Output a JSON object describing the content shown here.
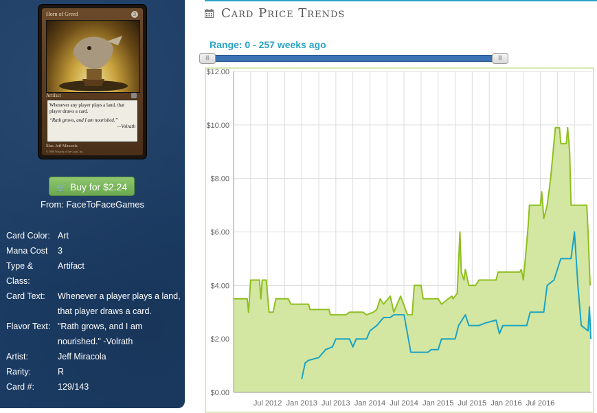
{
  "card": {
    "name": "Horn of Greed",
    "cost": "3",
    "type_line": "Artifact",
    "rules_text": "Whenever any player plays a land, that player draws a card.",
    "flavor_text": "“Rath grows, and I am nourished.”",
    "flavor_sig": "—Volrath",
    "illus": "Illus. Jeff Miracola",
    "copyright": "© 1998 Wizards of the Coast, Inc."
  },
  "buy": {
    "label": "Buy for $2.24",
    "from": "From: FaceToFaceGames",
    "cart_icon": "🛒"
  },
  "info": [
    {
      "label": "Card Color:",
      "value": "Art"
    },
    {
      "label": "Mana Cost",
      "value": "3"
    },
    {
      "label": "Type & Class:",
      "value": "Artifact"
    },
    {
      "label": "Card Text:",
      "value": "Whenever a player plays a land, that player draws a card."
    },
    {
      "label": "Flavor Text:",
      "value": "\"Rath grows, and I am nourished.\" -Volrath"
    },
    {
      "label": "Artist:",
      "value": "Jeff Miracola"
    },
    {
      "label": "Rarity:",
      "value": "R"
    },
    {
      "label": "Card #:",
      "value": "129/143"
    }
  ],
  "header": {
    "title": "Card Price Trends",
    "icon": "calendar-icon"
  },
  "range": {
    "label": "Range: 0 - 257 weeks ago",
    "min": 0,
    "max": 257,
    "handle_glyph": "|||"
  },
  "colors": {
    "accent": "#2aa3c7",
    "green": "#8fbf1f",
    "fill": "#d3e6a2",
    "blue": "#1aa3c4",
    "sidebar": "#1c3d66",
    "button": "#79b85b"
  },
  "chart_data": {
    "type": "line",
    "xlabel": "",
    "ylabel": "",
    "ylim": [
      0,
      12
    ],
    "y_ticks": [
      "$0.00",
      "$2.00",
      "$4.00",
      "$6.00",
      "$8.00",
      "$10.00",
      "$12.00"
    ],
    "x_ticks": [
      "Jul 2012",
      "Jan 2013",
      "Jul 2013",
      "Jan 2014",
      "Jul 2014",
      "Jan 2015",
      "Jul 2015",
      "Jan 2016",
      "Jul 2016"
    ],
    "series": [
      {
        "color": "#8fbf1f",
        "filled": true,
        "points": [
          [
            2012.0,
            3.5
          ],
          [
            2012.2,
            3.5
          ],
          [
            2012.22,
            3.0
          ],
          [
            2012.25,
            4.2
          ],
          [
            2012.38,
            4.2
          ],
          [
            2012.4,
            3.5
          ],
          [
            2012.42,
            4.2
          ],
          [
            2012.48,
            4.2
          ],
          [
            2012.52,
            3.0
          ],
          [
            2012.58,
            3.0
          ],
          [
            2012.62,
            3.5
          ],
          [
            2012.8,
            3.5
          ],
          [
            2012.84,
            3.3
          ],
          [
            2013.1,
            3.3
          ],
          [
            2013.12,
            3.1
          ],
          [
            2013.4,
            3.1
          ],
          [
            2013.42,
            2.9
          ],
          [
            2013.65,
            2.9
          ],
          [
            2013.7,
            3.0
          ],
          [
            2013.9,
            3.0
          ],
          [
            2013.95,
            2.9
          ],
          [
            2014.05,
            3.0
          ],
          [
            2014.1,
            3.1
          ],
          [
            2014.15,
            3.5
          ],
          [
            2014.2,
            3.3
          ],
          [
            2014.3,
            3.6
          ],
          [
            2014.35,
            3.0
          ],
          [
            2014.45,
            3.6
          ],
          [
            2014.55,
            2.9
          ],
          [
            2014.62,
            2.9
          ],
          [
            2014.65,
            4.0
          ],
          [
            2014.75,
            4.0
          ],
          [
            2014.78,
            3.5
          ],
          [
            2015.0,
            3.5
          ],
          [
            2015.05,
            3.3
          ],
          [
            2015.2,
            3.6
          ],
          [
            2015.22,
            3.5
          ],
          [
            2015.28,
            3.7
          ],
          [
            2015.32,
            6.0
          ],
          [
            2015.34,
            4.5
          ],
          [
            2015.38,
            4.2
          ],
          [
            2015.4,
            4.6
          ],
          [
            2015.45,
            4.0
          ],
          [
            2015.55,
            4.0
          ],
          [
            2015.6,
            4.2
          ],
          [
            2015.85,
            4.2
          ],
          [
            2015.88,
            4.5
          ],
          [
            2016.2,
            4.5
          ],
          [
            2016.22,
            4.6
          ],
          [
            2016.25,
            4.2
          ],
          [
            2016.28,
            5.0
          ],
          [
            2016.32,
            6.2
          ],
          [
            2016.34,
            7.0
          ],
          [
            2016.5,
            7.0
          ],
          [
            2016.52,
            7.5
          ],
          [
            2016.55,
            6.5
          ],
          [
            2016.6,
            7.0
          ],
          [
            2016.65,
            8.0
          ],
          [
            2016.72,
            9.9
          ],
          [
            2016.78,
            9.9
          ],
          [
            2016.8,
            9.3
          ],
          [
            2016.88,
            9.3
          ],
          [
            2016.9,
            9.9
          ],
          [
            2016.93,
            9.0
          ],
          [
            2016.95,
            7.0
          ],
          [
            2017.18,
            7.0
          ],
          [
            2017.2,
            6.0
          ],
          [
            2017.23,
            4.0
          ]
        ]
      },
      {
        "color": "#1aa3c4",
        "filled": false,
        "points": [
          [
            2013.0,
            0.5
          ],
          [
            2013.05,
            1.1
          ],
          [
            2013.1,
            1.2
          ],
          [
            2013.25,
            1.3
          ],
          [
            2013.35,
            1.6
          ],
          [
            2013.45,
            1.7
          ],
          [
            2013.5,
            2.0
          ],
          [
            2013.7,
            2.0
          ],
          [
            2013.75,
            1.7
          ],
          [
            2013.8,
            2.0
          ],
          [
            2013.95,
            2.0
          ],
          [
            2014.0,
            2.3
          ],
          [
            2014.1,
            2.5
          ],
          [
            2014.2,
            2.8
          ],
          [
            2014.3,
            2.8
          ],
          [
            2014.35,
            2.9
          ],
          [
            2014.5,
            2.9
          ],
          [
            2014.6,
            1.5
          ],
          [
            2014.85,
            1.5
          ],
          [
            2014.9,
            1.6
          ],
          [
            2015.0,
            1.6
          ],
          [
            2015.05,
            2.0
          ],
          [
            2015.25,
            2.0
          ],
          [
            2015.3,
            2.5
          ],
          [
            2015.4,
            2.9
          ],
          [
            2015.45,
            2.5
          ],
          [
            2015.6,
            2.5
          ],
          [
            2015.7,
            2.6
          ],
          [
            2015.85,
            2.7
          ],
          [
            2015.9,
            2.2
          ],
          [
            2015.95,
            2.5
          ],
          [
            2016.3,
            2.5
          ],
          [
            2016.35,
            3.0
          ],
          [
            2016.55,
            3.0
          ],
          [
            2016.6,
            4.0
          ],
          [
            2016.7,
            4.2
          ],
          [
            2016.8,
            5.0
          ],
          [
            2016.95,
            5.0
          ],
          [
            2017.0,
            6.0
          ],
          [
            2017.05,
            4.0
          ],
          [
            2017.1,
            2.5
          ],
          [
            2017.2,
            2.3
          ],
          [
            2017.22,
            3.2
          ],
          [
            2017.24,
            2.0
          ]
        ]
      }
    ]
  }
}
